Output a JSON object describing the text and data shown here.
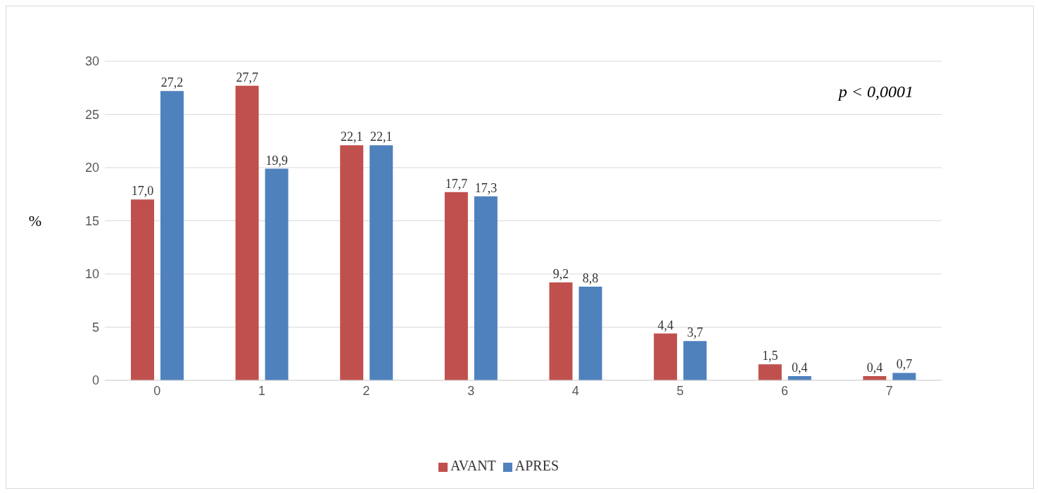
{
  "chart_data": {
    "type": "bar",
    "ylabel": "%",
    "categories": [
      "0",
      "1",
      "2",
      "3",
      "4",
      "5",
      "6",
      "7"
    ],
    "series": [
      {
        "name": "AVANT",
        "color": "#c0504d",
        "values": [
          17.0,
          27.7,
          22.1,
          17.7,
          9.2,
          4.4,
          1.5,
          0.4
        ],
        "value_labels": [
          "17,0",
          "27,7",
          "22,1",
          "17,7",
          "9,2",
          "4,4",
          "1,5",
          "0,4"
        ]
      },
      {
        "name": "APRES",
        "color": "#4f81bd",
        "values": [
          27.2,
          19.9,
          22.1,
          17.3,
          8.8,
          3.7,
          0.4,
          0.7
        ],
        "value_labels": [
          "27,2",
          "19,9",
          "22,1",
          "17,3",
          "8,8",
          "3,7",
          "0,4",
          "0,7"
        ]
      }
    ],
    "ylim": [
      0,
      30
    ],
    "yticks": [
      0,
      5,
      10,
      15,
      20,
      25,
      30
    ],
    "grid": "y",
    "legend": "bottom",
    "annotations": [
      "p < 0,0001"
    ]
  }
}
